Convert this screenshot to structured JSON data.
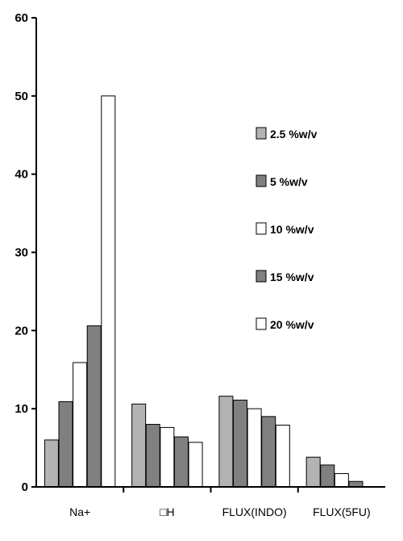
{
  "chart_data": {
    "type": "bar",
    "categories": [
      "Na+",
      "□H",
      "FLUX(INDO)",
      "FLUX(5FU)"
    ],
    "series": [
      {
        "name": "2.5 %w/v",
        "color": "#b3b3b3",
        "values": [
          6.0,
          10.6,
          11.6,
          3.8
        ]
      },
      {
        "name": "5 %w/v",
        "color": "#808080",
        "values": [
          10.9,
          8.0,
          11.1,
          2.8
        ]
      },
      {
        "name": "10 %w/v",
        "color": "#ffffff",
        "values": [
          15.9,
          7.6,
          10.0,
          1.7
        ]
      },
      {
        "name": "15 %w/v",
        "color": "#808080",
        "values": [
          20.6,
          6.4,
          9.0,
          0.7
        ]
      },
      {
        "name": "20 %w/v",
        "color": "#ffffff",
        "values": [
          50.0,
          5.7,
          7.9,
          0.0
        ]
      }
    ],
    "ylim": [
      0,
      60
    ],
    "yticks": [
      0,
      10,
      20,
      30,
      40,
      50,
      60
    ],
    "grid": false,
    "legend_position": "right"
  }
}
